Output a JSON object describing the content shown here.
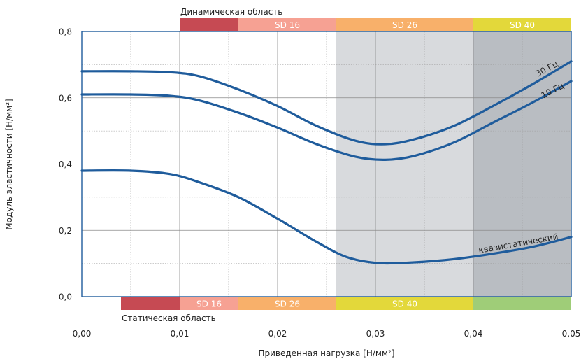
{
  "chart_data": {
    "type": "line",
    "xlabel": "Приведенная нагрузка [Н/мм²]",
    "ylabel": "Модуль эластичности [Н/мм²]",
    "xlim": [
      0,
      0.05
    ],
    "ylim": [
      0,
      0.8
    ],
    "x_ticks": [
      "0,00",
      "0,01",
      "0,02",
      "0,03",
      "0,04",
      "0,05"
    ],
    "y_ticks": [
      "0,0",
      "0,2",
      "0,4",
      "0,6",
      "0,8"
    ],
    "x_minor_step": 0.005,
    "y_minor_step": 0.1,
    "grid": true,
    "shaded_regions": [
      {
        "x0": 0.026,
        "x1": 0.04,
        "color": "#d8dadd"
      },
      {
        "x0": 0.04,
        "x1": 0.05,
        "color": "#b9bdc2"
      }
    ],
    "dynamic_range": {
      "label": "Динамическая область",
      "bands": [
        {
          "label": "",
          "x0": 0.01,
          "x1": 0.016,
          "color": "#c64a53"
        },
        {
          "label": "SD 16",
          "x0": 0.016,
          "x1": 0.026,
          "color": "#f6a193"
        },
        {
          "label": "SD 26",
          "x0": 0.026,
          "x1": 0.04,
          "color": "#f8b06a"
        },
        {
          "label": "SD 40",
          "x0": 0.04,
          "x1": 0.05,
          "color": "#e3d83a"
        }
      ]
    },
    "static_range": {
      "label": "Статическая область",
      "bands": [
        {
          "label": "",
          "x0": 0.004,
          "x1": 0.01,
          "color": "#c64a53"
        },
        {
          "label": "SD 16",
          "x0": 0.01,
          "x1": 0.016,
          "color": "#f6a193"
        },
        {
          "label": "SD 26",
          "x0": 0.016,
          "x1": 0.026,
          "color": "#f8b06a"
        },
        {
          "label": "SD 40",
          "x0": 0.026,
          "x1": 0.04,
          "color": "#e3d83a"
        },
        {
          "label": "",
          "x0": 0.04,
          "x1": 0.05,
          "color": "#9fcd78"
        }
      ]
    },
    "series": [
      {
        "name": "30 Гц",
        "color": "#1f5c9c",
        "x": [
          0,
          0.005,
          0.009,
          0.012,
          0.016,
          0.02,
          0.024,
          0.028,
          0.031,
          0.034,
          0.038,
          0.042,
          0.046,
          0.05
        ],
        "y": [
          0.68,
          0.68,
          0.677,
          0.665,
          0.625,
          0.575,
          0.515,
          0.47,
          0.46,
          0.475,
          0.515,
          0.575,
          0.64,
          0.71
        ]
      },
      {
        "name": "10 Гц",
        "color": "#1f5c9c",
        "x": [
          0,
          0.005,
          0.009,
          0.012,
          0.016,
          0.02,
          0.024,
          0.028,
          0.031,
          0.034,
          0.038,
          0.042,
          0.046,
          0.05
        ],
        "y": [
          0.61,
          0.61,
          0.606,
          0.592,
          0.555,
          0.51,
          0.46,
          0.422,
          0.413,
          0.425,
          0.465,
          0.525,
          0.585,
          0.65
        ]
      },
      {
        "name": "квазистатический",
        "color": "#1f5c9c",
        "x": [
          0,
          0.005,
          0.009,
          0.012,
          0.016,
          0.02,
          0.024,
          0.027,
          0.03,
          0.033,
          0.037,
          0.041,
          0.046,
          0.05
        ],
        "y": [
          0.38,
          0.38,
          0.37,
          0.345,
          0.3,
          0.235,
          0.165,
          0.12,
          0.102,
          0.102,
          0.11,
          0.125,
          0.15,
          0.18
        ]
      }
    ]
  }
}
